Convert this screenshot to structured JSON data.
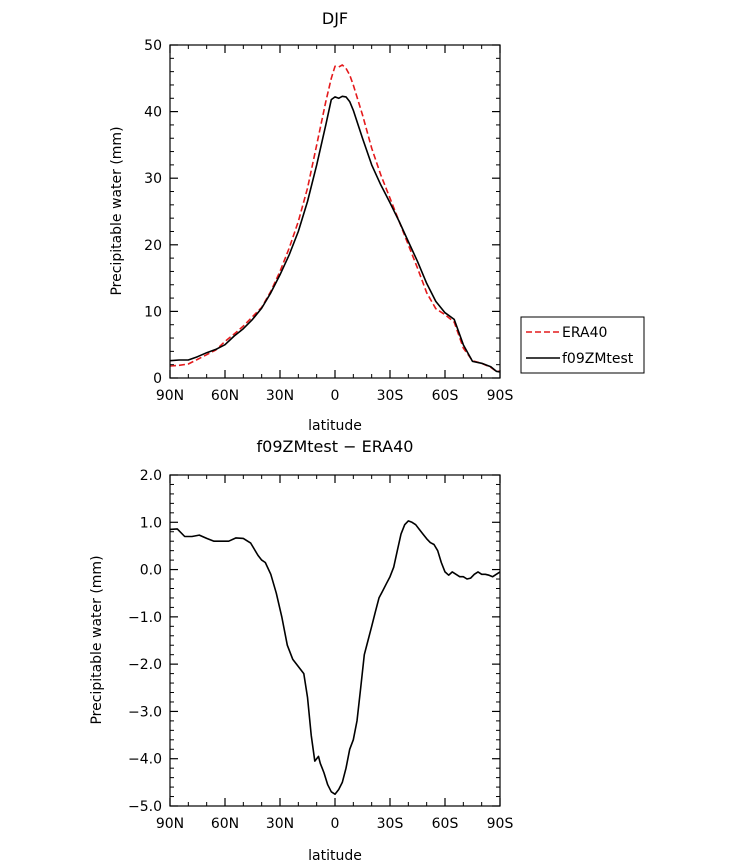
{
  "chart_data": [
    {
      "type": "line",
      "title": "DJF",
      "xlabel": "latitude",
      "ylabel": "Precipitable water (mm)",
      "xlim": [
        -90,
        90
      ],
      "ylim": [
        0,
        50
      ],
      "x_ticks": [
        -90,
        -60,
        -30,
        0,
        30,
        60,
        90
      ],
      "x_tick_labels": [
        "90N",
        "60N",
        "30N",
        "0",
        "30S",
        "60S",
        "90S"
      ],
      "y_ticks": [
        0,
        10,
        20,
        30,
        40,
        50
      ],
      "y_tick_labels": [
        "0",
        "10",
        "20",
        "30",
        "40",
        "50"
      ],
      "legend": "right",
      "series": [
        {
          "name": "ERA40",
          "color": "#e41a1c",
          "dash": "dashed",
          "x": [
            -90,
            -85,
            -80,
            -75,
            -70,
            -65,
            -60,
            -55,
            -50,
            -45,
            -40,
            -35,
            -30,
            -25,
            -20,
            -15,
            -10,
            -5,
            -2,
            0,
            2,
            4,
            6,
            8,
            10,
            15,
            20,
            25,
            30,
            35,
            40,
            45,
            50,
            55,
            60,
            65,
            70,
            75,
            80,
            85,
            88,
            90
          ],
          "y": [
            1.8,
            1.9,
            2.1,
            2.8,
            3.5,
            4.2,
            5.5,
            6.6,
            7.8,
            9.2,
            10.6,
            13,
            16,
            19.5,
            23.5,
            28.5,
            35,
            41.5,
            45,
            46.8,
            46.7,
            47,
            46.5,
            45.5,
            44,
            39.5,
            34.5,
            30.5,
            27,
            23.5,
            20,
            16.5,
            12.8,
            10.4,
            9.5,
            8.4,
            4.5,
            2.6,
            2.2,
            1.6,
            1.0,
            1.0
          ]
        },
        {
          "name": "f09ZMtest",
          "color": "#000000",
          "dash": "solid",
          "x": [
            -90,
            -85,
            -80,
            -75,
            -70,
            -65,
            -60,
            -55,
            -50,
            -45,
            -40,
            -35,
            -30,
            -25,
            -20,
            -15,
            -10,
            -5,
            -2,
            0,
            2,
            4,
            6,
            8,
            10,
            15,
            20,
            25,
            30,
            35,
            40,
            45,
            50,
            55,
            60,
            65,
            70,
            75,
            80,
            85,
            88,
            90
          ],
          "y": [
            2.6,
            2.7,
            2.7,
            3.2,
            3.8,
            4.3,
            5.0,
            6.3,
            7.4,
            8.8,
            10.5,
            12.8,
            15.5,
            18.5,
            22,
            26.5,
            32,
            38,
            41.8,
            42.2,
            42,
            42.3,
            42.2,
            41.5,
            40.2,
            36,
            32,
            29,
            26.3,
            23.5,
            20.5,
            17.5,
            14.2,
            11.5,
            9.8,
            8.8,
            5.0,
            2.5,
            2.2,
            1.7,
            1.0,
            0.9
          ]
        }
      ]
    },
    {
      "type": "line",
      "title": "f09ZMtest − ERA40",
      "xlabel": "latitude",
      "ylabel": "Precipitable water (mm)",
      "xlim": [
        -90,
        90
      ],
      "ylim": [
        -5,
        2
      ],
      "x_ticks": [
        -90,
        -60,
        -30,
        0,
        30,
        60,
        90
      ],
      "x_tick_labels": [
        "90N",
        "60N",
        "30N",
        "0",
        "30S",
        "60S",
        "90S"
      ],
      "y_ticks": [
        -5,
        -4,
        -3,
        -2,
        -1,
        0,
        1,
        2
      ],
      "y_tick_labels": [
        "−5.0",
        "−4.0",
        "−3.0",
        "−2.0",
        "−1.0",
        "0.0",
        "1.0",
        "2.0"
      ],
      "series": [
        {
          "color": "#000000",
          "dash": "solid",
          "x": [
            -90,
            -86,
            -82,
            -78,
            -74,
            -70,
            -66,
            -62,
            -58,
            -54,
            -50,
            -46,
            -42,
            -40,
            -38,
            -35,
            -32,
            -29,
            -26,
            -23,
            -20,
            -17,
            -15,
            -13,
            -11,
            -9,
            -8,
            -7,
            -6,
            -4,
            -2,
            0,
            2,
            4,
            6,
            8,
            10,
            12,
            14,
            16,
            18,
            20,
            22,
            24,
            26,
            28,
            30,
            32,
            34,
            36,
            38,
            40,
            42,
            44,
            46,
            48,
            50,
            52,
            54,
            56,
            58,
            60,
            62,
            64,
            66,
            68,
            70,
            72,
            74,
            76,
            78,
            80,
            82,
            84,
            86,
            88,
            90
          ],
          "y": [
            0.85,
            0.86,
            0.7,
            0.7,
            0.73,
            0.66,
            0.6,
            0.6,
            0.6,
            0.67,
            0.66,
            0.56,
            0.3,
            0.2,
            0.15,
            -0.1,
            -0.5,
            -1.0,
            -1.6,
            -1.9,
            -2.05,
            -2.2,
            -2.7,
            -3.5,
            -4.05,
            -3.95,
            -4.1,
            -4.2,
            -4.3,
            -4.55,
            -4.7,
            -4.75,
            -4.65,
            -4.5,
            -4.2,
            -3.8,
            -3.6,
            -3.2,
            -2.5,
            -1.8,
            -1.5,
            -1.2,
            -0.9,
            -0.6,
            -0.45,
            -0.3,
            -0.15,
            0.05,
            0.4,
            0.75,
            0.95,
            1.03,
            1.0,
            0.95,
            0.85,
            0.75,
            0.65,
            0.57,
            0.53,
            0.4,
            0.15,
            -0.05,
            -0.12,
            -0.05,
            -0.1,
            -0.15,
            -0.15,
            -0.2,
            -0.18,
            -0.1,
            -0.05,
            -0.1,
            -0.1,
            -0.12,
            -0.15,
            -0.1,
            -0.05
          ]
        }
      ]
    }
  ]
}
